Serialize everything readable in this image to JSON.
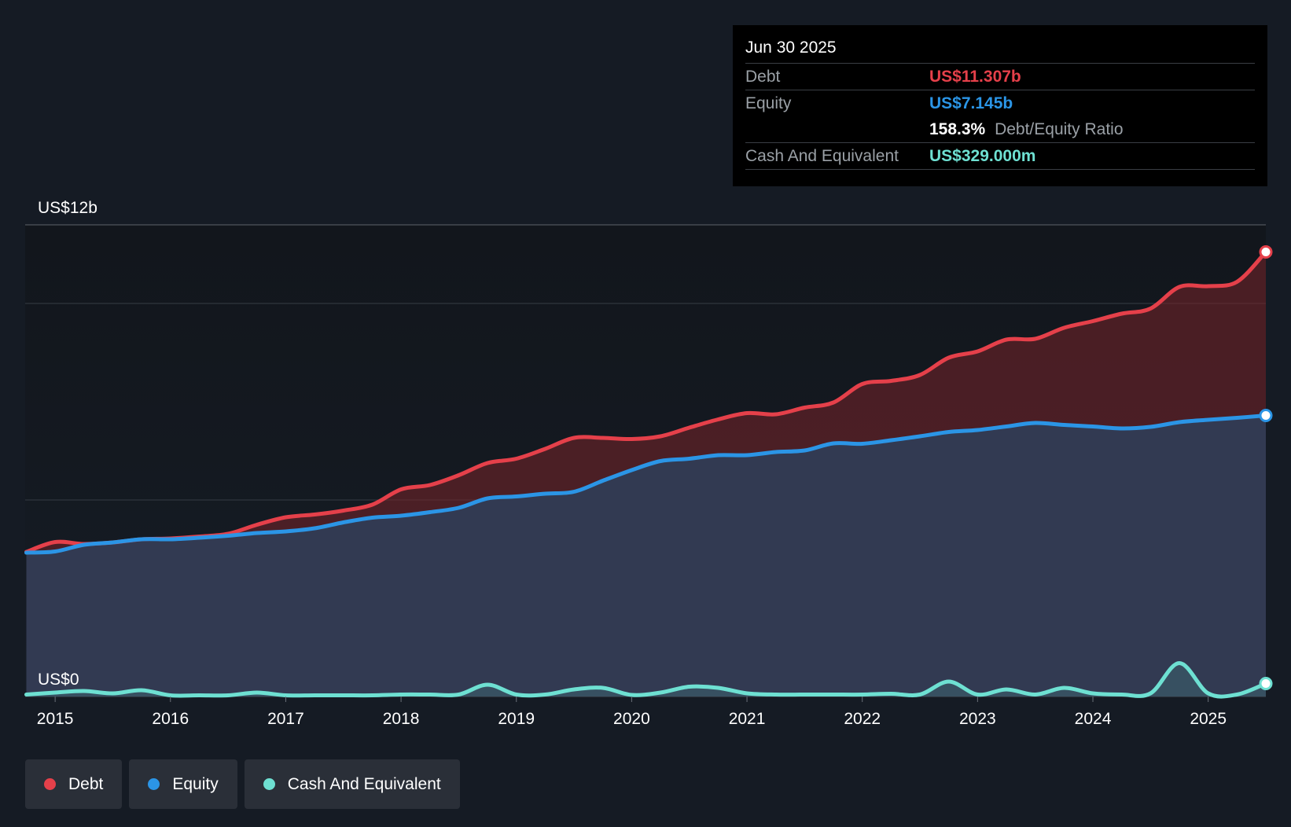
{
  "tooltip": {
    "date": "Jun 30 2025",
    "rows": [
      {
        "label": "Debt",
        "value": "US$11.307b",
        "color": "#e5404a"
      },
      {
        "label": "Equity",
        "value": "US$7.145b",
        "color": "#2b95e6"
      },
      {
        "label": "",
        "ratio_value": "158.3%",
        "ratio_label": "Debt/Equity Ratio"
      },
      {
        "label": "Cash And Equivalent",
        "value": "US$329.000m",
        "color": "#6ee0d2"
      }
    ]
  },
  "legend": [
    {
      "label": "Debt",
      "color": "#e5404a"
    },
    {
      "label": "Equity",
      "color": "#2b95e6"
    },
    {
      "label": "Cash And Equivalent",
      "color": "#6ee0d2"
    }
  ],
  "chart_data": {
    "type": "area",
    "title": "",
    "xlabel": "",
    "ylabel": "",
    "ylim": [
      0,
      12
    ],
    "y_unit": "US$ billions",
    "y_tick_labels": [
      {
        "value": 12,
        "label": "US$12b"
      },
      {
        "value": 0,
        "label": "US$0"
      }
    ],
    "gridlines": [
      12,
      10,
      5,
      0
    ],
    "x_ticks": [
      2015,
      2016,
      2017,
      2018,
      2019,
      2020,
      2021,
      2022,
      2023,
      2024,
      2025
    ],
    "x_range": [
      2014.74,
      2025.5
    ],
    "x": [
      2014.75,
      2015.0,
      2015.25,
      2015.5,
      2015.75,
      2016.0,
      2016.25,
      2016.5,
      2016.75,
      2017.0,
      2017.25,
      2017.5,
      2017.75,
      2018.0,
      2018.25,
      2018.5,
      2018.75,
      2019.0,
      2019.25,
      2019.5,
      2019.75,
      2020.0,
      2020.25,
      2020.5,
      2020.75,
      2021.0,
      2021.25,
      2021.5,
      2021.75,
      2022.0,
      2022.25,
      2022.5,
      2022.75,
      2023.0,
      2023.25,
      2023.5,
      2023.75,
      2024.0,
      2024.25,
      2024.5,
      2024.75,
      2025.0,
      2025.25,
      2025.5
    ],
    "series": [
      {
        "name": "Debt",
        "color": "#e5404a",
        "values": [
          3.68,
          3.93,
          3.88,
          3.92,
          4.0,
          4.02,
          4.07,
          4.14,
          4.37,
          4.56,
          4.63,
          4.73,
          4.88,
          5.27,
          5.38,
          5.63,
          5.94,
          6.05,
          6.3,
          6.58,
          6.58,
          6.55,
          6.62,
          6.84,
          7.05,
          7.21,
          7.18,
          7.35,
          7.48,
          7.95,
          8.03,
          8.18,
          8.62,
          8.78,
          9.08,
          9.1,
          9.38,
          9.55,
          9.74,
          9.87,
          10.42,
          10.44,
          10.55,
          11.31
        ]
      },
      {
        "name": "Equity",
        "color": "#2b95e6",
        "values": [
          3.66,
          3.69,
          3.86,
          3.92,
          4.0,
          4.0,
          4.04,
          4.09,
          4.16,
          4.2,
          4.28,
          4.43,
          4.55,
          4.6,
          4.69,
          4.8,
          5.04,
          5.09,
          5.16,
          5.21,
          5.49,
          5.76,
          5.99,
          6.05,
          6.14,
          6.14,
          6.22,
          6.26,
          6.44,
          6.43,
          6.52,
          6.62,
          6.73,
          6.78,
          6.87,
          6.96,
          6.91,
          6.87,
          6.82,
          6.86,
          6.98,
          7.04,
          7.09,
          7.15
        ]
      },
      {
        "name": "Cash And Equivalent",
        "color": "#6ee0d2",
        "values": [
          0.05,
          0.1,
          0.14,
          0.08,
          0.16,
          0.03,
          0.03,
          0.03,
          0.1,
          0.03,
          0.03,
          0.03,
          0.03,
          0.05,
          0.05,
          0.05,
          0.3,
          0.05,
          0.05,
          0.18,
          0.22,
          0.04,
          0.1,
          0.25,
          0.22,
          0.08,
          0.05,
          0.05,
          0.05,
          0.05,
          0.07,
          0.05,
          0.38,
          0.05,
          0.18,
          0.05,
          0.22,
          0.08,
          0.05,
          0.08,
          0.85,
          0.08,
          0.05,
          0.33
        ]
      }
    ]
  }
}
